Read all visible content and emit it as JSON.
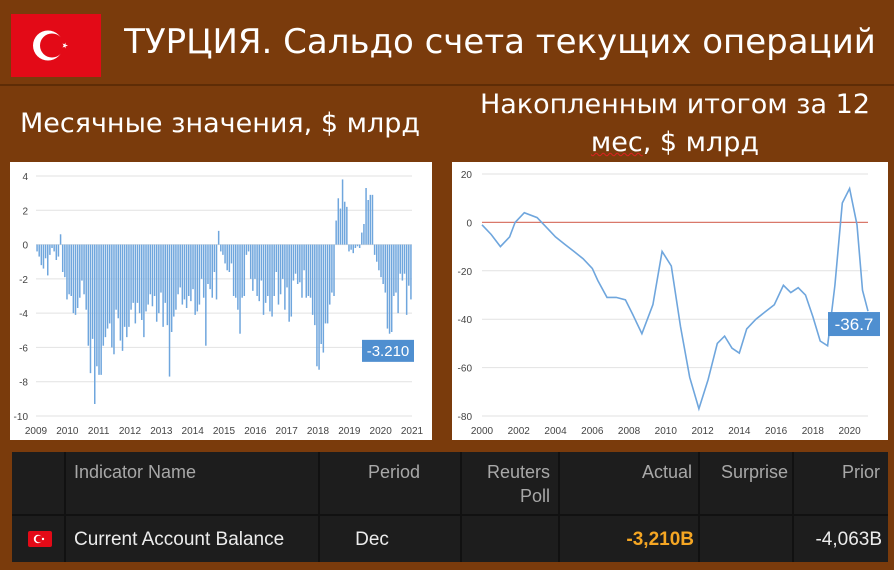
{
  "header": {
    "title": "ТУРЦИЯ. Сальдо счета текущих операций",
    "flag_icon": "turkey-flag-icon"
  },
  "subtitles": {
    "left": "Месячные значения, $ млрд",
    "right_line1": "Накопленным итогом за 12",
    "right_line2_a": "мес",
    "right_line2_b": ", $ млрд"
  },
  "chart_data": [
    {
      "type": "bar",
      "title": "",
      "ylim": [
        -10,
        4
      ],
      "xlim": [
        2009,
        2021
      ],
      "x_ticks": [
        "2009",
        "2010",
        "2011",
        "2012",
        "2013",
        "2014",
        "2015",
        "2016",
        "2017",
        "2018",
        "2019",
        "2020",
        "2021"
      ],
      "y_ticks": [
        "4",
        "2",
        "0",
        "-2",
        "-4",
        "-6",
        "-8",
        "-10"
      ],
      "grid": true,
      "color": "#6fa6dd",
      "callout": "-3.210",
      "values": [
        -0.4,
        -0.7,
        -1.2,
        -1.4,
        -0.8,
        -1.8,
        -0.6,
        -0.2,
        -0.4,
        -0.9,
        -0.7,
        0.6,
        -1.6,
        -1.9,
        -3.2,
        -2.9,
        -3.0,
        -4.0,
        -4.1,
        -3.7,
        -3.1,
        -2.1,
        -2.9,
        -3.8,
        -5.9,
        -7.5,
        -5.5,
        -9.3,
        -7.1,
        -7.6,
        -7.6,
        -5.9,
        -5.4,
        -4.9,
        -4.6,
        -6.0,
        -6.4,
        -3.8,
        -4.3,
        -5.6,
        -6.2,
        -4.8,
        -5.4,
        -4.8,
        -3.8,
        -3.4,
        -4.6,
        -3.4,
        -4.0,
        -4.4,
        -5.4,
        -3.9,
        -3.5,
        -2.9,
        -3.6,
        -3.0,
        -4.5,
        -4.0,
        -2.8,
        -4.8,
        -3.4,
        -4.7,
        -7.7,
        -5.1,
        -4.2,
        -3.8,
        -2.9,
        -2.5,
        -3.5,
        -3.2,
        -3.7,
        -3.0,
        -3.3,
        -2.6,
        -4.1,
        -3.9,
        -3.5,
        -2.0,
        -3.1,
        -5.9,
        -2.3,
        -2.6,
        -3.1,
        -1.6,
        -3.2,
        0.8,
        -0.4,
        -0.6,
        -1.1,
        -1.5,
        -1.6,
        -1.1,
        -3.0,
        -3.1,
        -3.8,
        -5.2,
        -3.1,
        -3.0,
        -0.6,
        -0.4,
        -2.0,
        -2.7,
        -2.0,
        -3.0,
        -3.3,
        -2.1,
        -4.1,
        -3.4,
        -3.0,
        -3.9,
        -4.2,
        -3.0,
        -1.6,
        -3.5,
        -2.9,
        -2.0,
        -3.8,
        -2.5,
        -4.5,
        -4.2,
        -2.1,
        -1.7,
        -2.3,
        -2.2,
        -3.1,
        -1.5,
        -3.1,
        -3.0,
        -3.1,
        -4.1,
        -4.7,
        -7.1,
        -7.3,
        -5.8,
        -6.3,
        -4.6,
        -4.6,
        -3.5,
        -2.8,
        -3.0,
        1.4,
        2.7,
        2.1,
        3.8,
        2.5,
        2.2,
        -0.4,
        -0.3,
        -0.5,
        -0.2,
        -0.1,
        -0.2,
        0.7,
        1.2,
        3.3,
        2.6,
        2.9,
        2.9,
        -0.6,
        -1.0,
        -1.5,
        -1.9,
        -2.3,
        -2.8,
        -4.9,
        -5.2,
        -5.1,
        -3.0,
        -2.8,
        -4.0,
        -1.7,
        -2.1,
        -1.7,
        -4.1,
        -2.4,
        -3.2
      ]
    },
    {
      "type": "line",
      "title": "",
      "ylim": [
        -80,
        20
      ],
      "xlim": [
        2000,
        2021
      ],
      "x_ticks": [
        "2000",
        "2002",
        "2004",
        "2006",
        "2008",
        "2010",
        "2012",
        "2014",
        "2016",
        "2018",
        "2020"
      ],
      "y_ticks": [
        "20",
        "0",
        "-20",
        "-40",
        "-60",
        "-80"
      ],
      "grid": true,
      "color": "#6fa6dd",
      "zero_line_color": "#d9786a",
      "callout": "-36.7",
      "x": [
        2000,
        2000.5,
        2001,
        2001.5,
        2001.8,
        2002.3,
        2003,
        2003.5,
        2004,
        2004.5,
        2005,
        2005.5,
        2006,
        2006.3,
        2006.8,
        2007.3,
        2007.8,
        2008.2,
        2008.7,
        2009.3,
        2009.8,
        2010.3,
        2010.8,
        2011.3,
        2011.8,
        2012.3,
        2012.8,
        2013.2,
        2013.6,
        2014,
        2014.4,
        2014.9,
        2015.4,
        2015.9,
        2016.4,
        2016.8,
        2017.2,
        2017.6,
        2018,
        2018.4,
        2018.8,
        2019.2,
        2019.6,
        2020,
        2020.4,
        2020.7,
        2021
      ],
      "y": [
        -1,
        -5,
        -10,
        -6,
        0,
        4,
        2,
        -2,
        -6,
        -9,
        -12,
        -15,
        -19,
        -24,
        -31,
        -31,
        -32,
        -38,
        -46,
        -34,
        -12,
        -18,
        -43,
        -64,
        -77,
        -65,
        -50,
        -47,
        -52,
        -54,
        -44,
        -40,
        -37,
        -34,
        -26,
        -29,
        -27,
        -30,
        -39,
        -49,
        -51,
        -26,
        8,
        14,
        -1,
        -28,
        -36.7
      ]
    }
  ],
  "table": {
    "headers": {
      "indicator": "Indicator Name",
      "period": "Period",
      "reuters_1": "Reuters",
      "reuters_2": "Poll",
      "actual": "Actual",
      "surprise": "Surprise",
      "prior": "Prior"
    },
    "row": {
      "indicator": "Current Account Balance",
      "period": "Dec",
      "reuters": "",
      "actual": "-3,210B",
      "surprise": "",
      "prior": "-4,063B"
    },
    "actual_color": "#f5a623",
    "flag_icon": "turkey-flag-icon"
  }
}
